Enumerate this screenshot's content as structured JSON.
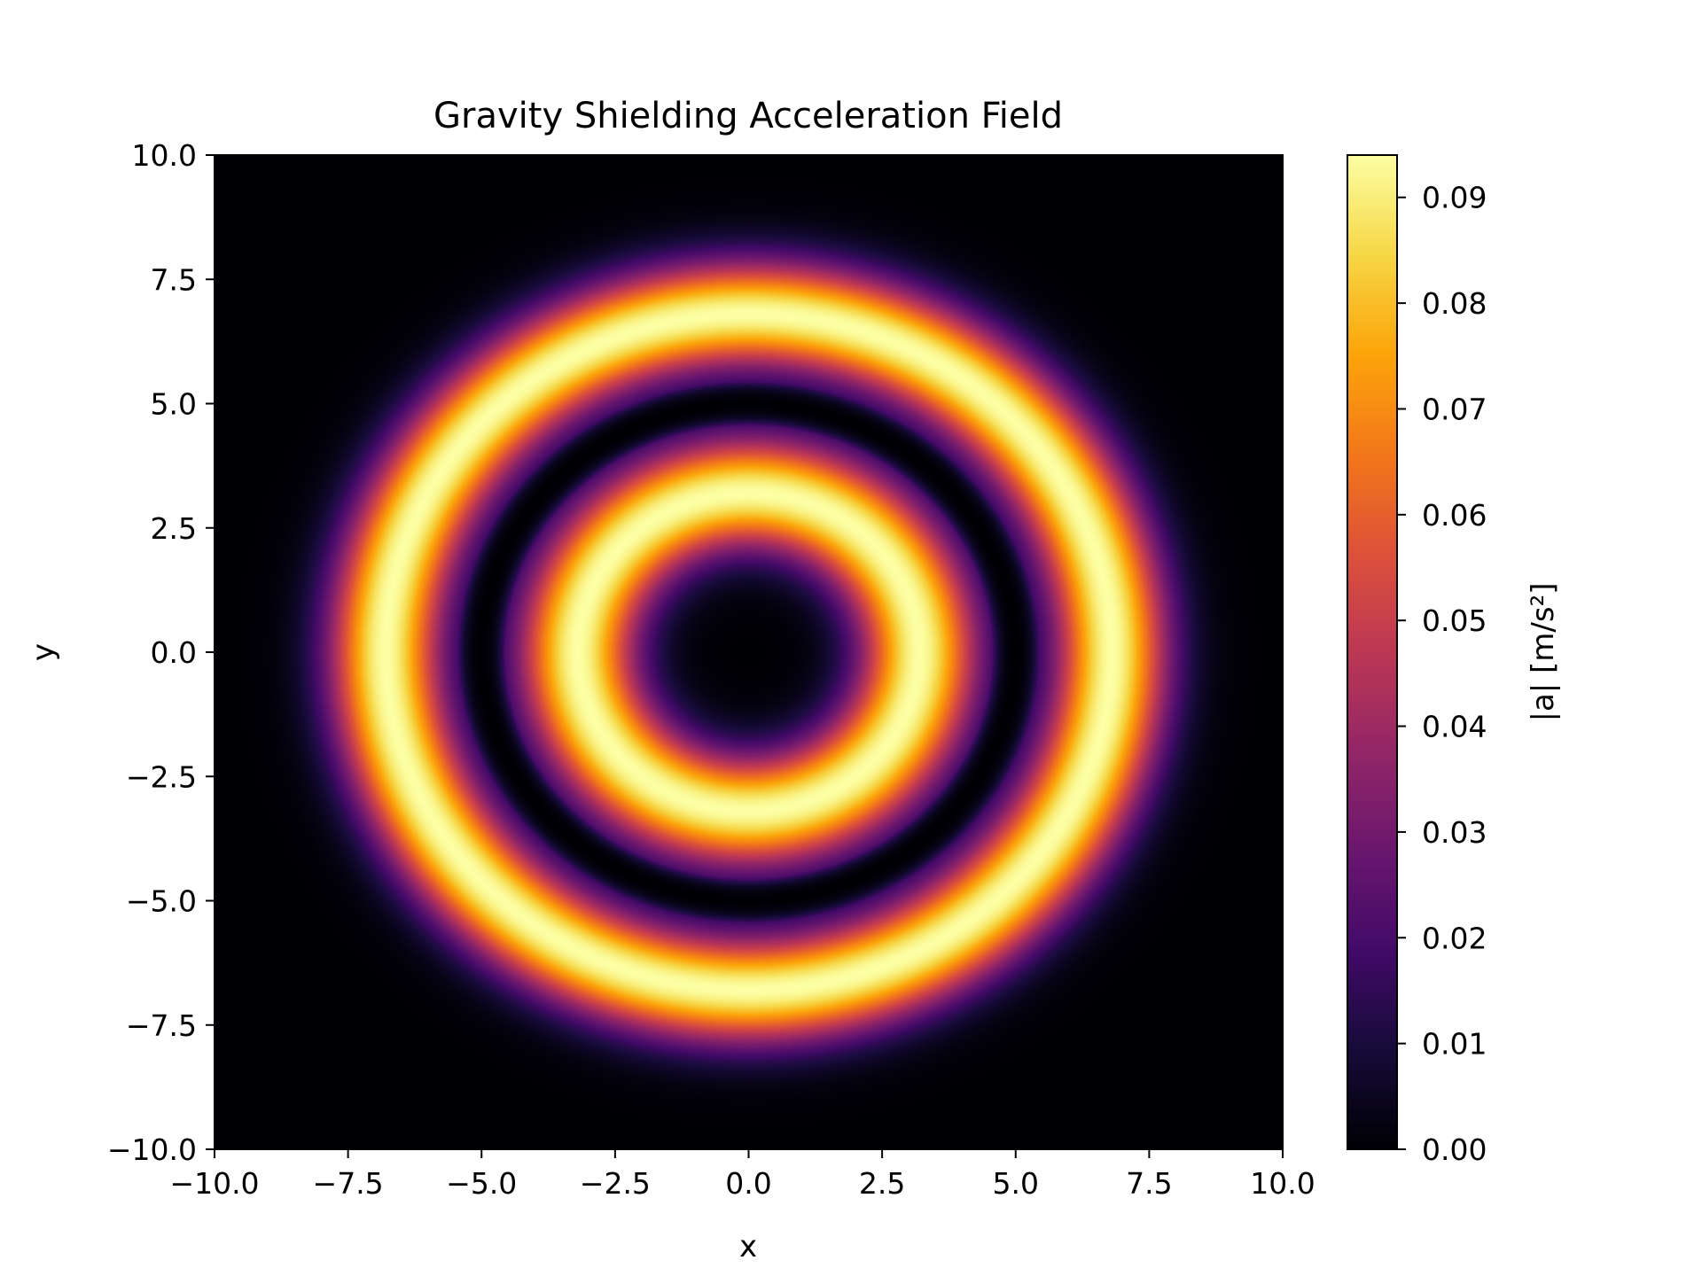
{
  "chart_data": {
    "type": "heatmap",
    "title": "Gravity Shielding Acceleration Field",
    "xlabel": "x",
    "ylabel": "y",
    "xlim": [
      -10.0,
      10.0
    ],
    "ylim": [
      -10.0,
      10.0
    ],
    "x_ticks": [
      -10.0,
      -7.5,
      -5.0,
      -2.5,
      0.0,
      2.5,
      5.0,
      7.5,
      10.0
    ],
    "y_ticks": [
      -10.0,
      -7.5,
      -5.0,
      -2.5,
      0.0,
      2.5,
      5.0,
      7.5,
      10.0
    ],
    "x_tick_labels": [
      "−10.0",
      "−7.5",
      "−5.0",
      "−2.5",
      "0.0",
      "2.5",
      "5.0",
      "7.5",
      "10.0"
    ],
    "y_tick_labels": [
      "−10.0",
      "−7.5",
      "−5.0",
      "−2.5",
      "0.0",
      "2.5",
      "5.0",
      "7.5",
      "10.0"
    ],
    "colormap": "inferno",
    "colorbar": {
      "label": "|a| [m/s²]",
      "range": [
        0.0,
        0.094
      ],
      "ticks": [
        0.0,
        0.01,
        0.02,
        0.03,
        0.04,
        0.05,
        0.06,
        0.07,
        0.08,
        0.09
      ],
      "tick_labels": [
        "0.00",
        "0.01",
        "0.02",
        "0.03",
        "0.04",
        "0.05",
        "0.06",
        "0.07",
        "0.08",
        "0.09"
      ]
    },
    "field": {
      "shape": "concentric rings centered at origin",
      "zero_ring_radius": 5.0,
      "inner_ring": {
        "peak_radius": 3.2,
        "peak_value": 0.094
      },
      "outer_ring": {
        "peak_radius": 6.8,
        "peak_value": 0.094
      },
      "center_value": 0.0
    },
    "grid": false
  }
}
